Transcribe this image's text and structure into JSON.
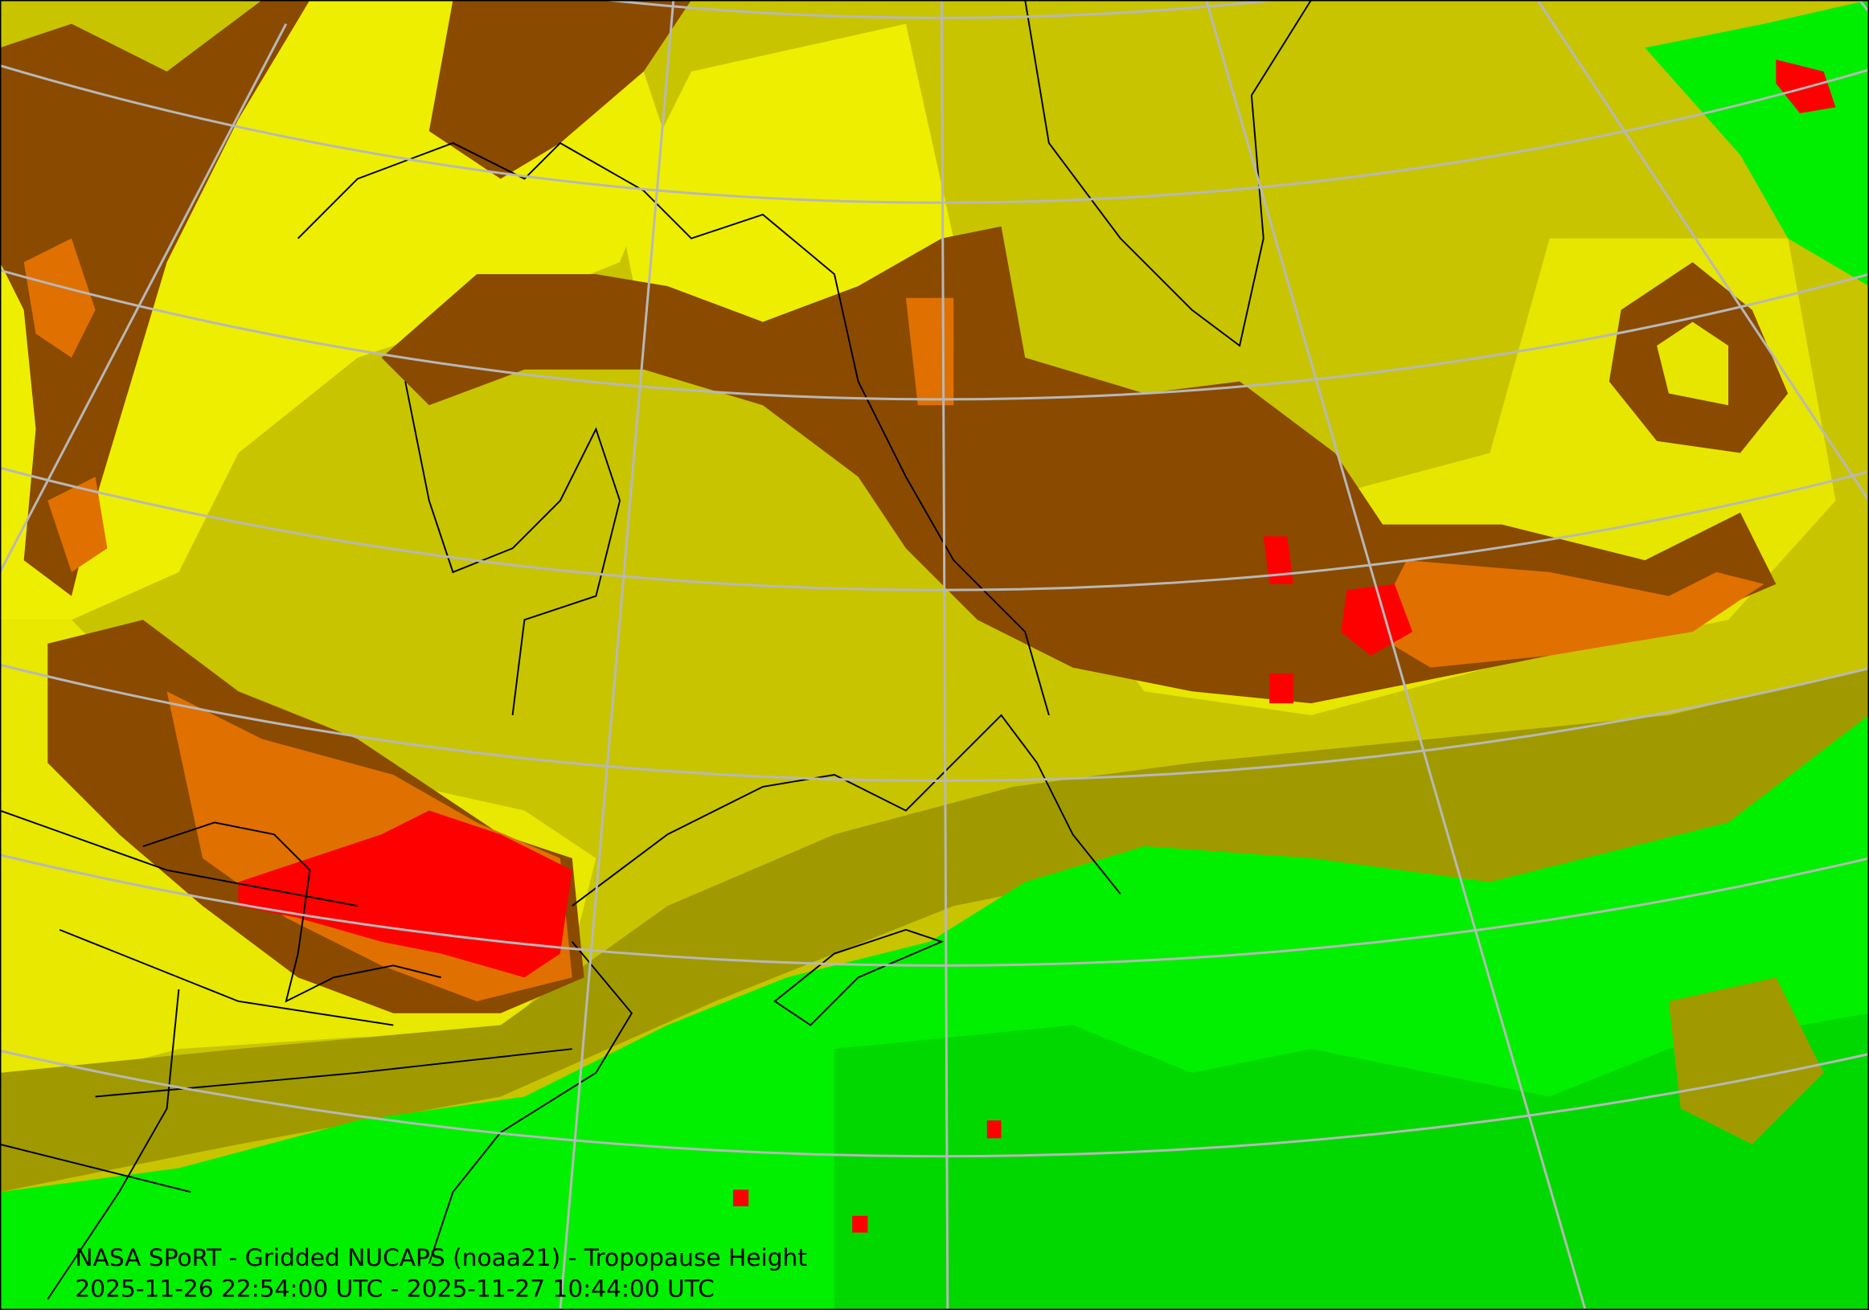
{
  "caption": {
    "line1": "NASA SPoRT - Gridded NUCAPS (noaa21) - Tropopause Height",
    "line2": "2025-11-26 22:54:00 UTC - 2025-11-27 10:44:00 UTC"
  }
}
